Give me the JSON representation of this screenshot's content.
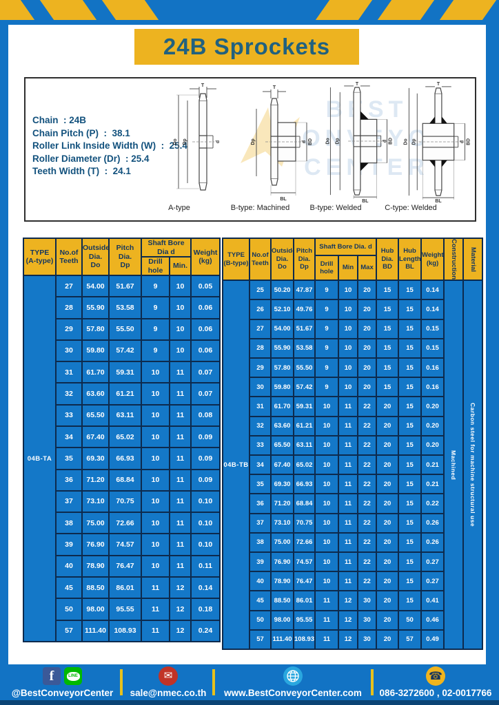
{
  "page": {
    "title": "24B Sprockets"
  },
  "specs": {
    "lines": [
      "Chain  : 24B",
      "Chain Pitch (P)  :  38.1",
      "Roller Link Inside Width (W)  :  25.4",
      "Roller Diameter (Dr)  : 25.4",
      "Teeth Width (T)  :  24.1"
    ],
    "dim": {
      "t": "T",
      "do": "Do",
      "dp": "Dp",
      "d": "d",
      "bd": "BD",
      "bl": "BL"
    },
    "diagram_labels": [
      "A-type",
      "B-type: Machined",
      "B-type: Welded",
      "C-type: Welded"
    ],
    "watermark": "BEST\nCONVEYOR\nCENTER"
  },
  "left_table": {
    "header": {
      "type": "TYPE\n(A-type)",
      "teeth": "No.of\nTeeth",
      "outside": "Outside\nDia.\nDo",
      "pitch": "Pitch Dia.\nDp",
      "shaft_bore": "Shaft Bore Dia d",
      "drill_hole": "Drill hole",
      "min": "Min.",
      "weight": "Weight\n(kg)"
    },
    "type_value": "04B-TA",
    "rows": [
      [
        "27",
        "54.00",
        "51.67",
        "9",
        "10",
        "0.05"
      ],
      [
        "28",
        "55.90",
        "53.58",
        "9",
        "10",
        "0.06"
      ],
      [
        "29",
        "57.80",
        "55.50",
        "9",
        "10",
        "0.06"
      ],
      [
        "30",
        "59.80",
        "57.42",
        "9",
        "10",
        "0.06"
      ],
      [
        "31",
        "61.70",
        "59.31",
        "10",
        "11",
        "0.07"
      ],
      [
        "32",
        "63.60",
        "61.21",
        "10",
        "11",
        "0.07"
      ],
      [
        "33",
        "65.50",
        "63.11",
        "10",
        "11",
        "0.08"
      ],
      [
        "34",
        "67.40",
        "65.02",
        "10",
        "11",
        "0.09"
      ],
      [
        "35",
        "69.30",
        "66.93",
        "10",
        "11",
        "0.09"
      ],
      [
        "36",
        "71.20",
        "68.84",
        "10",
        "11",
        "0.09"
      ],
      [
        "37",
        "73.10",
        "70.75",
        "10",
        "11",
        "0.10"
      ],
      [
        "38",
        "75.00",
        "72.66",
        "10",
        "11",
        "0.10"
      ],
      [
        "39",
        "76.90",
        "74.57",
        "10",
        "11",
        "0.10"
      ],
      [
        "40",
        "78.90",
        "76.47",
        "10",
        "11",
        "0.11"
      ],
      [
        "45",
        "88.50",
        "86.01",
        "11",
        "12",
        "0.14"
      ],
      [
        "50",
        "98.00",
        "95.55",
        "11",
        "12",
        "0.18"
      ],
      [
        "57",
        "111.40",
        "108.93",
        "11",
        "12",
        "0.24"
      ]
    ]
  },
  "right_table": {
    "header": {
      "type": "TYPE\n(B-type)",
      "teeth": "No.of\nTeeth",
      "outside": "Outside\nDia.\nDo",
      "pitch": "Pitch\nDia.\nDp",
      "shaft_bore": "Shaft Bore Dia.  d",
      "drill_hole": "Drill hole",
      "min": "Min",
      "max": "Max",
      "hub_dia": "Hub\nDia.\nBD",
      "hub_length": "Hub\nLength\nBL",
      "weight": "Weight\n(kg)",
      "construction": "Construction",
      "material": "Material"
    },
    "type_value": "04B-TB",
    "construction_value": "Machined",
    "material_value": "Carbon steel for machine structural use",
    "rows": [
      [
        "25",
        "50.20",
        "47.87",
        "9",
        "10",
        "20",
        "15",
        "15",
        "0.14"
      ],
      [
        "26",
        "52.10",
        "49.76",
        "9",
        "10",
        "20",
        "15",
        "15",
        "0.14"
      ],
      [
        "27",
        "54.00",
        "51.67",
        "9",
        "10",
        "20",
        "15",
        "15",
        "0.15"
      ],
      [
        "28",
        "55.90",
        "53.58",
        "9",
        "10",
        "20",
        "15",
        "15",
        "0.15"
      ],
      [
        "29",
        "57.80",
        "55.50",
        "9",
        "10",
        "20",
        "15",
        "15",
        "0.16"
      ],
      [
        "30",
        "59.80",
        "57.42",
        "9",
        "10",
        "20",
        "15",
        "15",
        "0.16"
      ],
      [
        "31",
        "61.70",
        "59.31",
        "10",
        "11",
        "22",
        "20",
        "15",
        "0.20"
      ],
      [
        "32",
        "63.60",
        "61.21",
        "10",
        "11",
        "22",
        "20",
        "15",
        "0.20"
      ],
      [
        "33",
        "65.50",
        "63.11",
        "10",
        "11",
        "22",
        "20",
        "15",
        "0.20"
      ],
      [
        "34",
        "67.40",
        "65.02",
        "10",
        "11",
        "22",
        "20",
        "15",
        "0.21"
      ],
      [
        "35",
        "69.30",
        "66.93",
        "10",
        "11",
        "22",
        "20",
        "15",
        "0.21"
      ],
      [
        "36",
        "71.20",
        "68.84",
        "10",
        "11",
        "22",
        "20",
        "15",
        "0.22"
      ],
      [
        "37",
        "73.10",
        "70.75",
        "10",
        "11",
        "22",
        "20",
        "15",
        "0.26"
      ],
      [
        "38",
        "75.00",
        "72.66",
        "10",
        "11",
        "22",
        "20",
        "15",
        "0.26"
      ],
      [
        "39",
        "76.90",
        "74.57",
        "10",
        "11",
        "22",
        "20",
        "15",
        "0.27"
      ],
      [
        "40",
        "78.90",
        "76.47",
        "10",
        "11",
        "22",
        "20",
        "15",
        "0.27"
      ],
      [
        "45",
        "88.50",
        "86.01",
        "11",
        "12",
        "30",
        "20",
        "15",
        "0.41"
      ],
      [
        "50",
        "98.00",
        "95.55",
        "11",
        "12",
        "30",
        "20",
        "50",
        "0.46"
      ],
      [
        "57",
        "111.40",
        "108.93",
        "11",
        "12",
        "30",
        "20",
        "57",
        "0.49"
      ]
    ]
  },
  "footer": {
    "social_handle": "@BestConveyorCenter",
    "email": "sale@nmec.co.th",
    "website": "www.BestConveyorCenter.com",
    "phones": "086-3272600 , 02-0017766",
    "facebook_glyph": "f",
    "line_glyph": "LINE",
    "mail_glyph": "✉",
    "phone_glyph": "☎"
  },
  "colors": {
    "accent_yellow": "#edb320",
    "primary_blue": "#1273c4",
    "border_navy": "#0d2a4d",
    "title_blue": "#21617f",
    "facebook_blue": "#3b5998",
    "line_green": "#00b900",
    "email_red": "#c13327",
    "globe_blue": "#2aa7df",
    "phone_yellow": "#f0b41e"
  }
}
